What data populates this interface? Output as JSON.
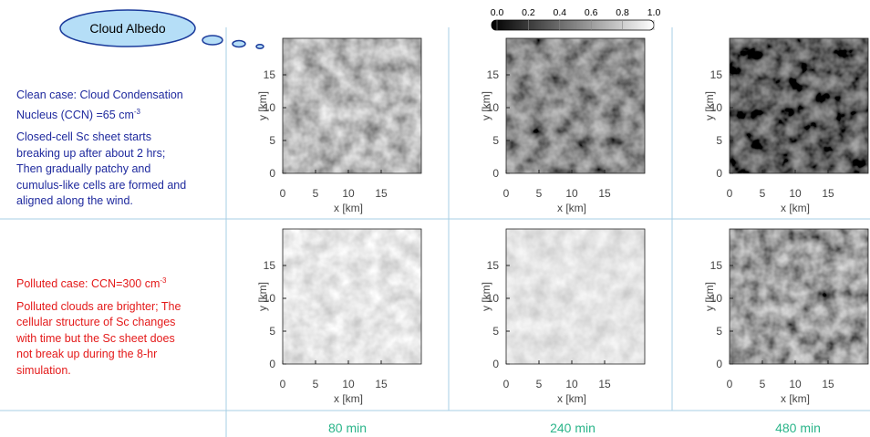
{
  "bubble": "Cloud Albedo",
  "colorbar_ticks": [
    "0.0",
    "0.2",
    "0.4",
    "0.6",
    "0.8",
    "1.0"
  ],
  "rows": [
    {
      "heading": [
        {
          "text": "Clean case: Cloud Condensation"
        },
        {
          "text": "Nucleus (CCN) =65 cm",
          "sup": "-3"
        }
      ],
      "body": [
        "Closed-cell Sc sheet starts",
        "breaking up after about 2 hrs;",
        "Then gradually patchy and",
        "cumulus-like cells are formed and",
        "aligned along the wind."
      ]
    },
    {
      "heading": [
        {
          "text": "Polluted case: CCN=300 cm",
          "sup": "-3"
        }
      ],
      "body": [
        "Polluted clouds are brighter; The",
        "cellular structure of Sc changes",
        "with time but the Sc sheet does",
        "not break up during the 8-hr",
        "simulation."
      ]
    }
  ],
  "axes": {
    "xticks": [
      "0",
      "5",
      "10",
      "15"
    ],
    "yticks": [
      "0",
      "5",
      "10",
      "15"
    ],
    "xlabel": "x [km]",
    "ylabel": "y [km]"
  },
  "times": [
    "80 min",
    "240 min",
    "480 min"
  ]
}
